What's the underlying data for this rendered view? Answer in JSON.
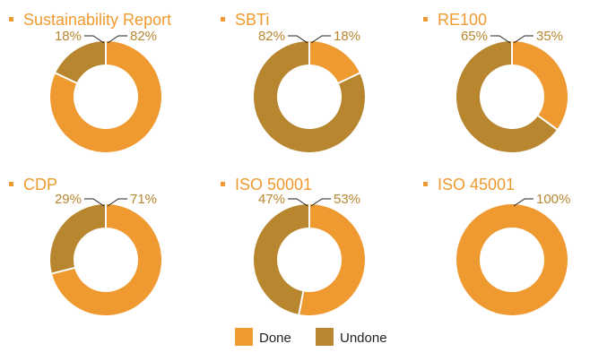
{
  "colors": {
    "done": "#ef9a30",
    "undone": "#b8862f",
    "label_text": "#b8862f",
    "leader_line": "#222222"
  },
  "chart_data": [
    {
      "type": "pie",
      "title": "Sustainability Report",
      "categories": [
        "Done",
        "Undone"
      ],
      "values": [
        82,
        18
      ],
      "labels": [
        "82%",
        "18%"
      ]
    },
    {
      "type": "pie",
      "title": "SBTi",
      "categories": [
        "Done",
        "Undone"
      ],
      "values": [
        18,
        82
      ],
      "labels": [
        "18%",
        "82%"
      ]
    },
    {
      "type": "pie",
      "title": "RE100",
      "categories": [
        "Done",
        "Undone"
      ],
      "values": [
        35,
        65
      ],
      "labels": [
        "35%",
        "65%"
      ]
    },
    {
      "type": "pie",
      "title": "CDP",
      "categories": [
        "Done",
        "Undone"
      ],
      "values": [
        71,
        29
      ],
      "labels": [
        "71%",
        "29%"
      ]
    },
    {
      "type": "pie",
      "title": "ISO 50001",
      "categories": [
        "Done",
        "Undone"
      ],
      "values": [
        53,
        47
      ],
      "labels": [
        "53%",
        "47%"
      ]
    },
    {
      "type": "pie",
      "title": "ISO 45001",
      "categories": [
        "Done",
        "Undone"
      ],
      "values": [
        100,
        0
      ],
      "labels": [
        "100%",
        ""
      ]
    }
  ],
  "legend": {
    "items": [
      {
        "label": "Done",
        "color_key": "done"
      },
      {
        "label": "Undone",
        "color_key": "undone"
      }
    ]
  }
}
